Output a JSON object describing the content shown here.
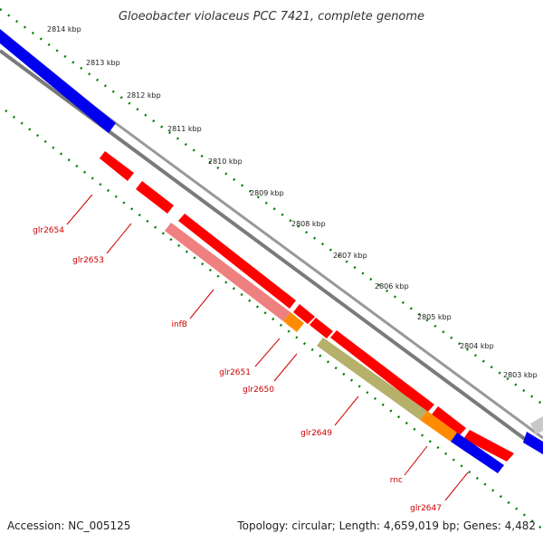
{
  "title": "Gloeobacter violaceus PCC 7421, complete genome",
  "footer": {
    "accession": "Accession: NC_005125",
    "info": "Topology: circular; Length: 4,659,019 bp; Genes: 4,482"
  },
  "ruler": {
    "unit": "kbp",
    "ticks": [
      "2814 kbp",
      "2813 kbp",
      "2812 kbp",
      "2811 kbp",
      "2810 kbp",
      "2809 kbp",
      "2808 kbp",
      "2807 kbp",
      "2806 kbp",
      "2805 kbp",
      "2804 kbp",
      "2803 kbp"
    ]
  },
  "genes": [
    {
      "name": "glr2654",
      "color": "#ff0000"
    },
    {
      "name": "glr2653",
      "color": "#ff0000"
    },
    {
      "name": "infB",
      "color": "#ff0000"
    },
    {
      "name": "glr2651",
      "color": "#ff0000"
    },
    {
      "name": "glr2650",
      "color": "#ff0000"
    },
    {
      "name": "glr2649",
      "color": "#ff0000"
    },
    {
      "name": "rnc",
      "color": "#ff0000"
    },
    {
      "name": "glr2647",
      "color": "#ff0000"
    }
  ],
  "colors": {
    "backbone": "#808080",
    "forward_cds": "#0000ee",
    "reverse_cds": "#ff0000",
    "rna": "#ff8080",
    "orange_feature": "#ff8c00",
    "olive_feature": "#b8b46a",
    "dotted_ring": "#008000",
    "grey_cds": "#cccccc"
  }
}
